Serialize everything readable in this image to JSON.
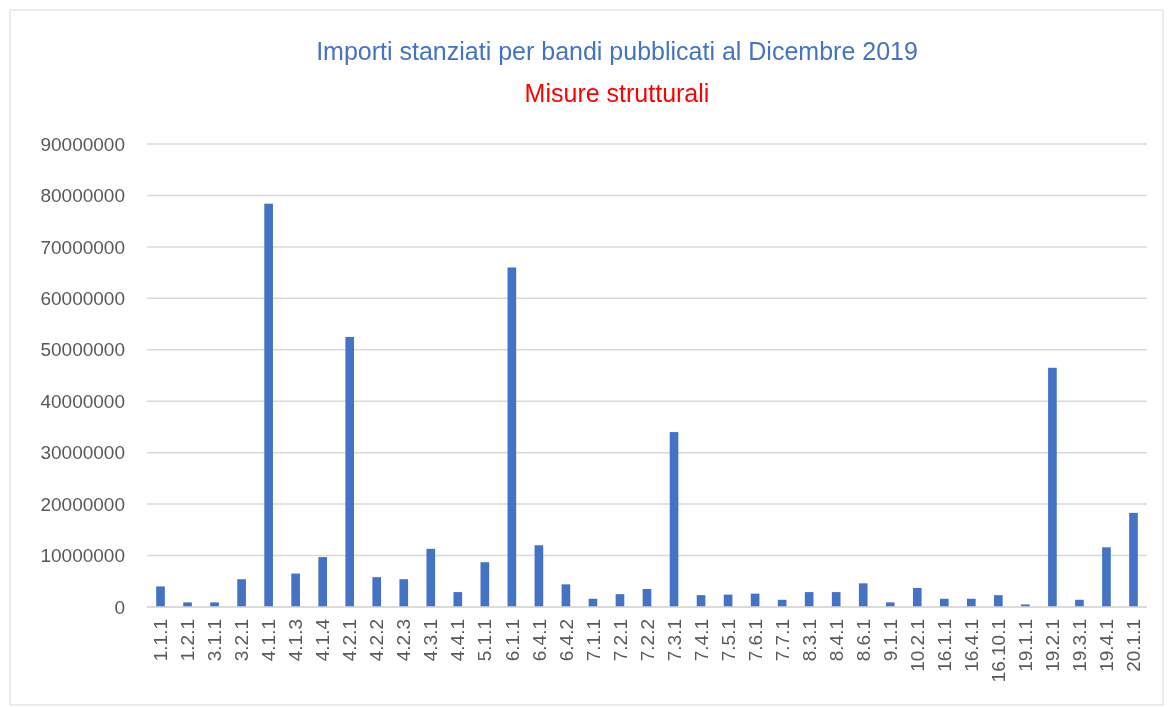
{
  "chart_data": {
    "type": "bar",
    "title": "Importi stanziati per bandi pubblicati al Dicembre 2019",
    "subtitle": "Misure strutturali",
    "categories": [
      "1.1.1",
      "1.2.1",
      "3.1.1",
      "3.2.1",
      "4.1.1",
      "4.1.3",
      "4.1.4",
      "4.2.1",
      "4.2.2",
      "4.2.3",
      "4.3.1",
      "4.4.1",
      "5.1.1",
      "6.1.1",
      "6.4.1",
      "6.4.2",
      "7.1.1",
      "7.2.1",
      "7.2.2",
      "7.3.1",
      "7.4.1",
      "7.5.1",
      "7.6.1",
      "7.7.1",
      "8.3.1",
      "8.4.1",
      "8.6.1",
      "9.1.1",
      "10.2.1",
      "16.1.1",
      "16.4.1",
      "16.10.1",
      "19.1.1",
      "19.2.1",
      "19.3.1",
      "19.4.1",
      "20.1.1"
    ],
    "values": [
      4000000,
      900000,
      900000,
      5400000,
      78400000,
      6500000,
      9700000,
      52500000,
      5800000,
      5400000,
      11300000,
      2900000,
      8700000,
      66000000,
      12000000,
      4400000,
      1600000,
      2500000,
      3500000,
      34000000,
      2300000,
      2400000,
      2600000,
      1400000,
      2900000,
      2900000,
      4600000,
      900000,
      3700000,
      1600000,
      1600000,
      2300000,
      500000,
      46500000,
      1400000,
      11600000,
      18300000
    ],
    "color": "#4472c4",
    "ylim": [
      0,
      90000000
    ],
    "yticks": [
      0,
      10000000,
      20000000,
      30000000,
      40000000,
      50000000,
      60000000,
      70000000,
      80000000,
      90000000
    ],
    "grid": "y"
  }
}
